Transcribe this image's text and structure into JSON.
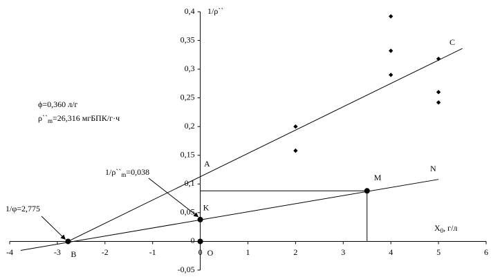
{
  "chart_data": {
    "type": "scatter",
    "xlim": [
      -4,
      6
    ],
    "ylim": [
      -0.05,
      0.4
    ],
    "xticks": [
      -4,
      -3,
      -2,
      -1,
      0,
      1,
      2,
      3,
      4,
      5,
      6
    ],
    "yticks": [
      {
        "value": -0.05,
        "label": "-0,05"
      },
      0,
      {
        "value": 0.05,
        "label": "0,05"
      },
      {
        "value": 0.1,
        "label": "0,1"
      },
      {
        "value": 0.15,
        "label": "0,15"
      },
      {
        "value": 0.2,
        "label": "0,2"
      },
      {
        "value": 0.25,
        "label": "0,25"
      },
      {
        "value": 0.3,
        "label": "0,3"
      },
      {
        "value": 0.35,
        "label": "0,35"
      },
      {
        "value": 0.4,
        "label": "0,4"
      }
    ],
    "color": "#000000",
    "x": [
      2,
      2,
      4,
      4,
      4,
      5,
      5,
      5
    ],
    "values": [
      0.2,
      0.158,
      0.392,
      0.332,
      0.29,
      0.318,
      0.26,
      0.242
    ],
    "lines": [
      {
        "x": [
          -2.775,
          5.5
        ],
        "values": [
          0,
          0.336
        ]
      },
      {
        "x": [
          -3.77,
          5.0
        ],
        "values": [
          -0.0157,
          0.108
        ]
      }
    ],
    "points": [
      {
        "label": "B",
        "x": -2.775,
        "y": 0
      },
      {
        "label": "K",
        "x": 0,
        "y": 0.038
      },
      {
        "label": "M",
        "x": 3.5,
        "y": 0.088
      },
      {
        "label": "O",
        "x": 0,
        "y": 0
      }
    ],
    "annotations": [
      {
        "text": "1/ρ``"
      },
      {
        "text": "ϕ=0,360 л/г"
      },
      {
        "text": "ρ``",
        "sub": "m",
        "rest": "=26,316 мгБПК/г·ч"
      },
      {
        "text": "1/ρ``",
        "sub": "m",
        "rest": "=0,038"
      },
      {
        "text": "1/φ=2,775"
      },
      {
        "text": "X",
        "sub": "0",
        "rest": ", г/л"
      },
      {
        "text": "A"
      },
      {
        "text": "C"
      },
      {
        "text": "N"
      }
    ]
  }
}
